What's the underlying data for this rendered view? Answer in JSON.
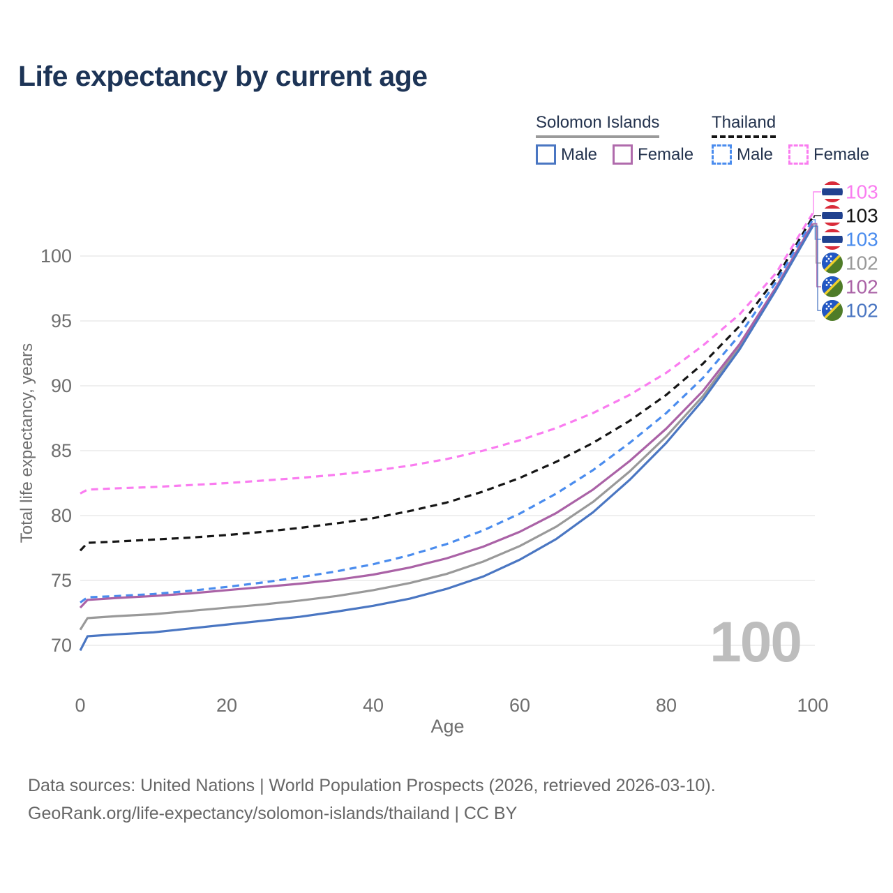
{
  "title": "Life expectancy by current age",
  "legend": {
    "groups": [
      {
        "name": "Solomon Islands",
        "line_style": "solid",
        "underline_color": "#9a9a9a",
        "items": [
          {
            "label": "Male",
            "color": "#4a76c2",
            "style": "solid"
          },
          {
            "label": "Female",
            "color": "#b06bac",
            "style": "solid"
          }
        ]
      },
      {
        "name": "Thailand",
        "line_style": "dashed",
        "underline_color": "#141414",
        "items": [
          {
            "label": "Male",
            "color": "#4a8cee",
            "style": "dashed"
          },
          {
            "label": "Female",
            "color": "#fa7cf0",
            "style": "dashed"
          }
        ]
      }
    ]
  },
  "axes": {
    "xlabel": "Age",
    "ylabel": "Total life expectancy, years"
  },
  "watermark": "100",
  "footer": {
    "line1": "Data sources: United Nations | World Population Prospects (2026, retrieved 2026-03-10).",
    "line2": "GeoRank.org/life-expectancy/solomon-islands/thailand | CC BY"
  },
  "appearance": {
    "grid_color": "#eaeaea",
    "axis_text_color": "#6e6e6e",
    "watermark_color": "#bdbdbd",
    "title_color": "#1d3456"
  },
  "flags": {
    "TH": {
      "red": "#d92c3a",
      "white": "#ffffff",
      "blue": "#20418f"
    },
    "SB": {
      "blue": "#2257c4",
      "green": "#4f7c28",
      "yellow": "#f0d02c",
      "star": "#ffffff"
    }
  },
  "chart_data": {
    "type": "line",
    "title": "Life expectancy by current age",
    "xlabel": "Age",
    "ylabel": "Total life expectancy, years",
    "xticks": [
      0,
      20,
      40,
      60,
      80,
      100
    ],
    "yticks": [
      70,
      75,
      80,
      85,
      90,
      95,
      100
    ],
    "xlim": [
      0,
      100
    ],
    "ylim": [
      69,
      104
    ],
    "grid": "horizontal-only",
    "legend_position": "top-right",
    "hover_age_indicator": "100",
    "x": [
      0,
      1,
      5,
      10,
      15,
      20,
      25,
      30,
      35,
      40,
      45,
      50,
      55,
      60,
      65,
      70,
      75,
      80,
      85,
      90,
      95,
      100
    ],
    "series": [
      {
        "id": "thailand-female",
        "name": "Thailand Female",
        "country": "Thailand",
        "sex": "Female",
        "color": "#fa7cf0",
        "dash": true,
        "flag": "TH",
        "end_label": "103",
        "values": [
          81.7,
          82.0,
          82.1,
          82.2,
          82.35,
          82.5,
          82.7,
          82.9,
          83.15,
          83.45,
          83.85,
          84.35,
          85.0,
          85.8,
          86.75,
          87.9,
          89.3,
          91.0,
          93.1,
          95.5,
          98.7,
          103.3
        ]
      },
      {
        "id": "thailand-total",
        "name": "Thailand Total",
        "country": "Thailand",
        "sex": "Total",
        "color": "#151515",
        "dash": true,
        "flag": "TH",
        "end_label": "103",
        "values": [
          77.3,
          77.9,
          78.0,
          78.15,
          78.3,
          78.5,
          78.75,
          79.05,
          79.4,
          79.8,
          80.35,
          81.0,
          81.85,
          82.9,
          84.15,
          85.6,
          87.3,
          89.3,
          91.7,
          94.6,
          98.3,
          103.0
        ]
      },
      {
        "id": "thailand-male",
        "name": "Thailand Male",
        "country": "Thailand",
        "sex": "Male",
        "color": "#4a8cee",
        "dash": true,
        "flag": "TH",
        "end_label": "103",
        "values": [
          73.3,
          73.7,
          73.8,
          73.95,
          74.2,
          74.5,
          74.85,
          75.25,
          75.7,
          76.25,
          76.95,
          77.8,
          78.85,
          80.15,
          81.7,
          83.5,
          85.6,
          87.9,
          90.6,
          93.9,
          98.0,
          102.8
        ]
      },
      {
        "id": "solomon-islands-total",
        "name": "Solomon Islands Total",
        "country": "Solomon Islands",
        "sex": "Total",
        "color": "#999999",
        "dash": false,
        "flag": "SB",
        "end_label": "102",
        "values": [
          71.2,
          72.1,
          72.25,
          72.4,
          72.65,
          72.9,
          73.15,
          73.45,
          73.8,
          74.25,
          74.8,
          75.5,
          76.45,
          77.65,
          79.15,
          81.05,
          83.4,
          86.1,
          89.2,
          93.0,
          97.5,
          102.4
        ]
      },
      {
        "id": "solomon-islands-female",
        "name": "Solomon Islands Female",
        "country": "Solomon Islands",
        "sex": "Female",
        "color": "#aa62a6",
        "dash": false,
        "flag": "SB",
        "end_label": "102",
        "values": [
          72.9,
          73.5,
          73.65,
          73.8,
          74.0,
          74.25,
          74.5,
          74.75,
          75.05,
          75.45,
          76.0,
          76.7,
          77.6,
          78.75,
          80.2,
          82.0,
          84.2,
          86.7,
          89.6,
          93.2,
          97.6,
          102.5
        ]
      },
      {
        "id": "solomon-islands-male",
        "name": "Solomon Islands Male",
        "country": "Solomon Islands",
        "sex": "Male",
        "color": "#4a76c2",
        "dash": false,
        "flag": "SB",
        "end_label": "102",
        "values": [
          69.6,
          70.7,
          70.85,
          71.0,
          71.3,
          71.6,
          71.9,
          72.2,
          72.6,
          73.05,
          73.6,
          74.35,
          75.3,
          76.6,
          78.2,
          80.25,
          82.75,
          85.6,
          88.9,
          92.8,
          97.4,
          102.3
        ]
      }
    ]
  }
}
